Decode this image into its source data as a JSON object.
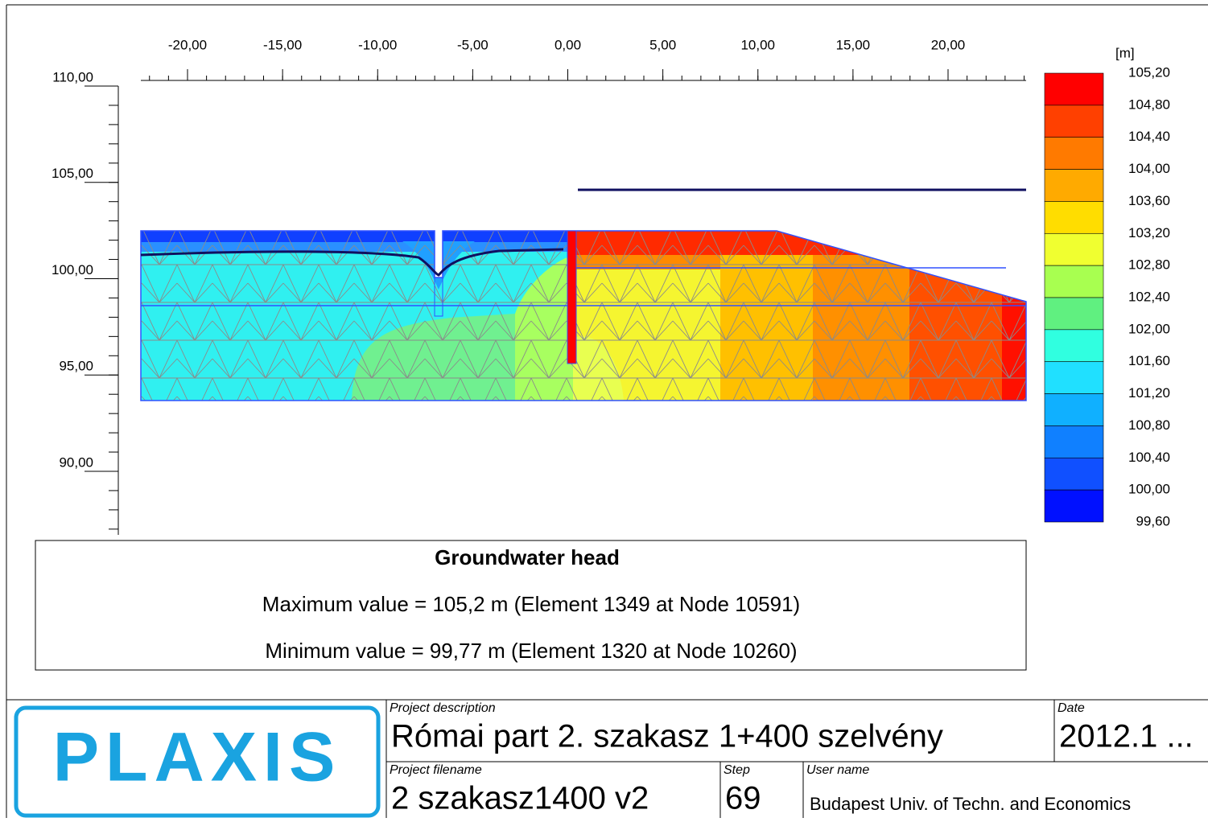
{
  "x_axis": {
    "ticks": [
      {
        "value": -20,
        "label": "-20,00"
      },
      {
        "value": -15,
        "label": "-15,00"
      },
      {
        "value": -10,
        "label": "-10,00"
      },
      {
        "value": -5,
        "label": "-5,00"
      },
      {
        "value": 0,
        "label": "0,00"
      },
      {
        "value": 5,
        "label": "5,00"
      },
      {
        "value": 10,
        "label": "10,00"
      },
      {
        "value": 15,
        "label": "15,00"
      },
      {
        "value": 20,
        "label": "20,00"
      }
    ]
  },
  "y_axis": {
    "ticks": [
      {
        "value": 110,
        "label": "110,00"
      },
      {
        "value": 105,
        "label": "105,00"
      },
      {
        "value": 100,
        "label": "100,00"
      },
      {
        "value": 95,
        "label": "95,00"
      },
      {
        "value": 90,
        "label": "90,00"
      }
    ]
  },
  "legend": {
    "unit": "[m]",
    "labels": [
      "105,20",
      "104,80",
      "104,40",
      "104,00",
      "103,60",
      "103,20",
      "102,80",
      "102,40",
      "102,00",
      "101,60",
      "101,20",
      "100,80",
      "100,40",
      "100,00",
      "99,60"
    ],
    "colors": [
      "#ff0000",
      "#ff4000",
      "#ff7a00",
      "#ffaa00",
      "#ffdd00",
      "#f0ff30",
      "#a8ff50",
      "#60f080",
      "#30ffe0",
      "#20e0ff",
      "#10b0ff",
      "#1080ff",
      "#1050ff",
      "#0010ff"
    ]
  },
  "results": {
    "title": "Groundwater head",
    "max": "Maximum value = 105,2 m (Element 1349 at Node 10591)",
    "min": "Minimum value = 99,77 m (Element 1320 at Node 10260)"
  },
  "title_block": {
    "logo": "PLAXIS",
    "project_description": {
      "label": "Project description",
      "value": "Római part 2. szakasz 1+400 szelvény"
    },
    "date": {
      "label": "Date",
      "value": "2012.1 ..."
    },
    "project_filename": {
      "label": "Project filename",
      "value": "2 szakasz1400 v2"
    },
    "step": {
      "label": "Step",
      "value": "69"
    },
    "user_name": {
      "label": "User name",
      "value": "Budapest Univ. of Techn. and Economics"
    }
  }
}
